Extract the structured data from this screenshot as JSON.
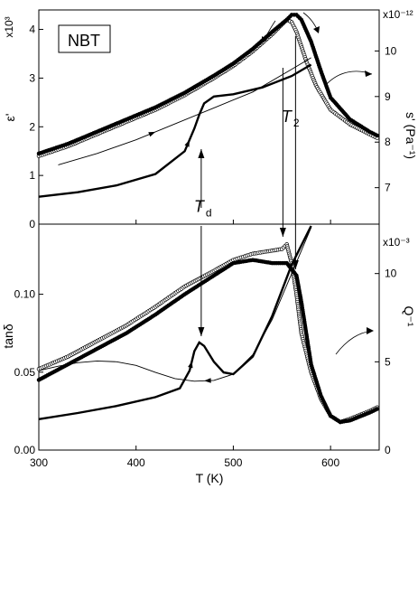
{
  "chart_data": [
    {
      "type": "line",
      "panel": "top",
      "annotation_box": "NBT",
      "xlim": [
        300,
        650
      ],
      "left_axis": {
        "label": "ε'",
        "multiplier": "x10³",
        "ylim": [
          0,
          4.4
        ],
        "ticks": [
          0,
          1,
          2,
          3,
          4
        ],
        "tick_labels": [
          "0",
          "1",
          "2",
          "3",
          "4"
        ]
      },
      "right_axis": {
        "label": "s' (Pa⁻¹)",
        "multiplier": "x10⁻¹²",
        "ylim": [
          6.2,
          10.9
        ],
        "ticks": [
          7,
          8,
          9,
          10
        ],
        "tick_labels": [
          "7",
          "8",
          "9",
          "10"
        ]
      },
      "series": [
        {
          "axis": "left",
          "style": "open-circles",
          "x": [
            300,
            330,
            360,
            390,
            420,
            450,
            480,
            500,
            520,
            540,
            550,
            555,
            560,
            565,
            575,
            585,
            600,
            620,
            640,
            650
          ],
          "y": [
            1.4,
            1.6,
            1.85,
            2.1,
            2.35,
            2.65,
            3.0,
            3.25,
            3.55,
            3.9,
            4.1,
            4.2,
            4.15,
            3.95,
            3.35,
            2.85,
            2.35,
            2.05,
            1.85,
            1.75
          ]
        },
        {
          "axis": "left",
          "style": "filled-circles",
          "x": [
            300,
            330,
            360,
            390,
            420,
            450,
            480,
            500,
            520,
            540,
            555,
            560,
            565,
            570,
            580,
            590,
            600,
            620,
            640,
            650
          ],
          "y": [
            1.45,
            1.65,
            1.9,
            2.15,
            2.4,
            2.7,
            3.05,
            3.3,
            3.6,
            3.95,
            4.2,
            4.3,
            4.3,
            4.2,
            3.75,
            3.15,
            2.6,
            2.15,
            1.9,
            1.8
          ]
        },
        {
          "axis": "right",
          "style": "thick-line",
          "x": [
            300,
            340,
            380,
            420,
            450,
            460,
            465,
            470,
            480,
            500,
            530,
            560,
            580
          ],
          "y": [
            6.8,
            6.9,
            7.05,
            7.3,
            7.8,
            8.3,
            8.6,
            8.85,
            9.0,
            9.05,
            9.2,
            9.45,
            9.7
          ]
        },
        {
          "axis": "right",
          "style": "thin-line",
          "x": [
            320,
            360,
            400,
            440,
            480,
            520,
            560,
            580
          ],
          "y": [
            7.5,
            7.75,
            8.05,
            8.4,
            8.75,
            9.1,
            9.6,
            9.85
          ]
        }
      ],
      "annotations": [
        {
          "label": "T",
          "subscript": "2",
          "x": 557,
          "y": 2.1
        },
        {
          "label": "T",
          "subscript": "d",
          "x": 467,
          "y": 0.25
        }
      ]
    },
    {
      "type": "line",
      "panel": "bottom",
      "xlabel": "T (K)",
      "xlim": [
        300,
        650
      ],
      "x_ticks": [
        300,
        400,
        500,
        600
      ],
      "x_tick_labels": [
        "300",
        "400",
        "500",
        "600"
      ],
      "left_axis": {
        "label": "tanδ",
        "ylim": [
          0,
          0.145
        ],
        "ticks": [
          0,
          0.05,
          0.1
        ],
        "tick_labels": [
          "0.00",
          "0.05",
          "0.10"
        ]
      },
      "right_axis": {
        "label": "Q⁻¹",
        "multiplier": "x10⁻³",
        "ylim": [
          0,
          12.8
        ],
        "ticks": [
          0,
          5,
          10
        ],
        "tick_labels": [
          "0",
          "5",
          "10"
        ]
      },
      "series": [
        {
          "axis": "left",
          "style": "open-circles",
          "x": [
            300,
            330,
            360,
            390,
            420,
            450,
            480,
            500,
            520,
            540,
            550,
            555,
            560,
            565,
            570,
            580,
            590,
            600,
            610,
            620,
            640,
            650
          ],
          "y": [
            0.052,
            0.06,
            0.07,
            0.08,
            0.092,
            0.105,
            0.115,
            0.122,
            0.126,
            0.128,
            0.129,
            0.132,
            0.12,
            0.1,
            0.075,
            0.05,
            0.033,
            0.022,
            0.018,
            0.02,
            0.025,
            0.028
          ]
        },
        {
          "axis": "left",
          "style": "filled-circles",
          "x": [
            300,
            330,
            360,
            390,
            420,
            450,
            480,
            500,
            520,
            540,
            555,
            565,
            570,
            575,
            580,
            590,
            600,
            610,
            620,
            640,
            650
          ],
          "y": [
            0.045,
            0.055,
            0.065,
            0.075,
            0.087,
            0.1,
            0.112,
            0.12,
            0.122,
            0.12,
            0.12,
            0.112,
            0.095,
            0.075,
            0.055,
            0.035,
            0.022,
            0.018,
            0.019,
            0.024,
            0.027
          ]
        },
        {
          "axis": "right",
          "style": "thick-line",
          "x": [
            300,
            340,
            380,
            420,
            445,
            455,
            460,
            465,
            470,
            480,
            490,
            500,
            520,
            540,
            560,
            580
          ],
          "y": [
            1.75,
            2.1,
            2.5,
            3.0,
            3.5,
            4.5,
            5.6,
            6.1,
            5.9,
            5.0,
            4.4,
            4.3,
            5.3,
            7.6,
            10.5,
            12.7
          ]
        },
        {
          "axis": "right",
          "style": "thin-line",
          "x": [
            580,
            560,
            540,
            520,
            500,
            480,
            460,
            440,
            420,
            400,
            380,
            360,
            340,
            320,
            300
          ],
          "y": [
            12.6,
            10.0,
            7.4,
            5.4,
            4.3,
            3.95,
            3.9,
            4.05,
            4.4,
            4.8,
            5.0,
            5.05,
            4.95,
            4.75,
            4.5
          ]
        }
      ],
      "annotations": []
    }
  ]
}
